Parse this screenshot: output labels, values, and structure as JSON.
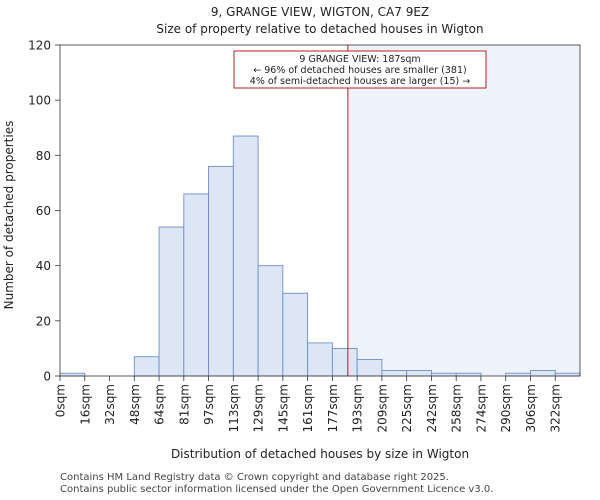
{
  "chart_data": {
    "type": "bar",
    "title": "9, GRANGE VIEW, WIGTON, CA7 9EZ",
    "subtitle": "Size of property relative to detached houses in Wigton",
    "xlabel": "Distribution of detached houses by size in Wigton",
    "ylabel": "Number of detached properties",
    "ylim": [
      0,
      120
    ],
    "yticks": [
      0,
      20,
      40,
      60,
      80,
      100,
      120
    ],
    "bin_edges": [
      0,
      16,
      32,
      48,
      64,
      81,
      97,
      113,
      129,
      145,
      161,
      177,
      193,
      209,
      225,
      242,
      258,
      274,
      290,
      306,
      322,
      338
    ],
    "categories": [
      "0sqm",
      "16sqm",
      "32sqm",
      "48sqm",
      "64sqm",
      "81sqm",
      "97sqm",
      "113sqm",
      "129sqm",
      "145sqm",
      "161sqm",
      "177sqm",
      "193sqm",
      "209sqm",
      "225sqm",
      "242sqm",
      "258sqm",
      "274sqm",
      "290sqm",
      "306sqm",
      "322sqm"
    ],
    "values": [
      1,
      0,
      0,
      7,
      54,
      66,
      76,
      87,
      40,
      30,
      12,
      10,
      6,
      2,
      2,
      1,
      1,
      0,
      1,
      2,
      1
    ],
    "marker_value": 187,
    "annotation": {
      "line1": "9 GRANGE VIEW: 187sqm",
      "line2": "← 96% of detached houses are smaller (381)",
      "line3": "4% of semi-detached houses are larger (15) →"
    },
    "colors": {
      "bar_fill": "#dce6f5",
      "bar_stroke": "#6e8fc4",
      "marker": "#b22222",
      "highlight_region": "#eef2fb"
    }
  },
  "footer": {
    "line1": "Contains HM Land Registry data © Crown copyright and database right 2025.",
    "line2": "Contains public sector information licensed under the Open Government Licence v3.0."
  }
}
